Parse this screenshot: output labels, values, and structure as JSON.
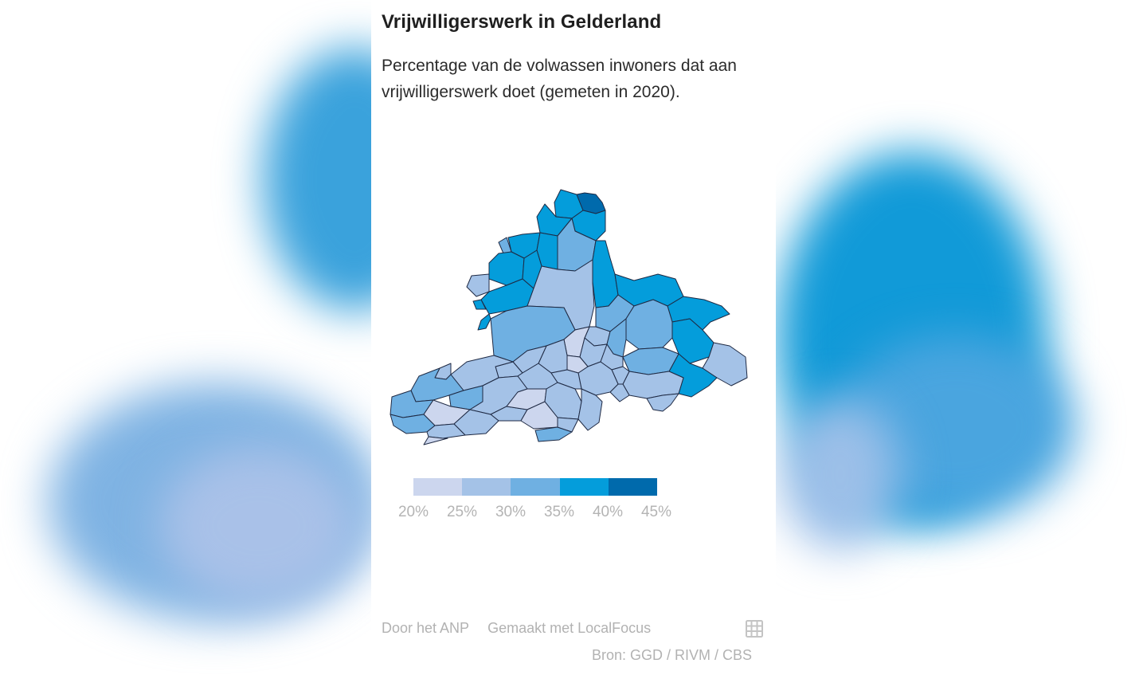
{
  "title": "Vrijwilligerswerk in Gelderland",
  "subtitle": "Percentage van de volwassen inwoners dat aan vrijwilligerswerk doet (gemeten in 2020).",
  "legend": {
    "labels": [
      "20%",
      "25%",
      "30%",
      "35%",
      "40%",
      "45%"
    ],
    "colors": [
      "#ccd6ee",
      "#a4c2e7",
      "#6fb0e2",
      "#049ddb",
      "#006aac"
    ]
  },
  "footer": {
    "author": "Door het ANP",
    "made_with": "Gemaakt met LocalFocus",
    "source": "Bron: GGD / RIVM / CBS",
    "table_icon": "grid-table-icon"
  },
  "colors": {
    "border": "#1f2a44",
    "text": "#1f1f1f",
    "muted": "#b2b2b2"
  }
}
